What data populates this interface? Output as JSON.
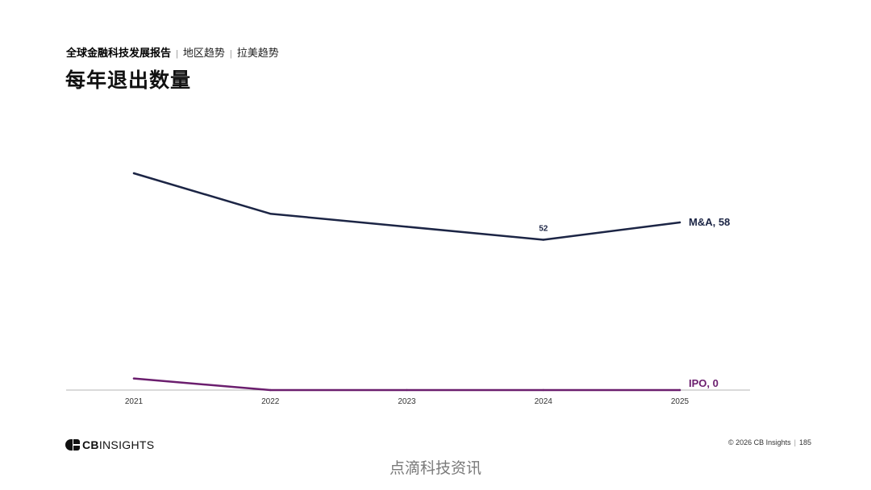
{
  "header": {
    "report_title": "全球金融科技发展报告",
    "section": "地区趋势",
    "subsection": "拉美趋势",
    "page_title": "每年退出数量"
  },
  "chart_data": {
    "type": "line",
    "title": "每年退出数量",
    "x": [
      "2021",
      "2022",
      "2023",
      "2024",
      "2025"
    ],
    "ylim": [
      0,
      75
    ],
    "grid": false,
    "series": [
      {
        "name": "M&A",
        "values": [
          75,
          61,
          56.5,
          52,
          58
        ],
        "color": "#1c2545",
        "end_label": "M&A, 58",
        "data_labels": [
          {
            "index": 3,
            "text": "52"
          }
        ]
      },
      {
        "name": "IPO",
        "values": [
          4,
          0,
          0,
          0,
          0
        ],
        "color": "#6b1e6e",
        "end_label": "IPO, 0",
        "data_labels": []
      }
    ]
  },
  "footer": {
    "logo_text_bold": "CB",
    "logo_text": "INSIGHTS",
    "copyright": "© 2026 CB Insights",
    "page_number": "185"
  },
  "watermark": "点滴科技资讯"
}
